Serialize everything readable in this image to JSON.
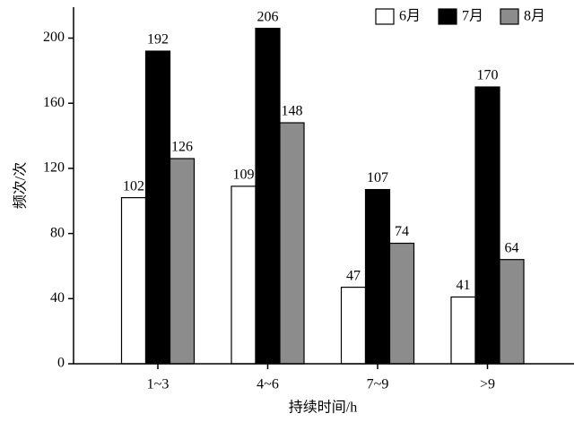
{
  "chart_data": {
    "type": "bar",
    "x_label": "持续时间/h",
    "y_label": "频次/次",
    "categories": [
      "1~3",
      "4~6",
      "7~9",
      ">9"
    ],
    "series": [
      {
        "name": "6月",
        "color": "#ffffff",
        "values": [
          102,
          109,
          47,
          41
        ]
      },
      {
        "name": "7月",
        "color": "#000000",
        "values": [
          192,
          206,
          107,
          170
        ]
      },
      {
        "name": "8月",
        "color": "#8c8c8c",
        "values": [
          126,
          148,
          74,
          64
        ]
      }
    ],
    "ylim": [
      0,
      219
    ],
    "yticks": [
      0,
      40,
      80,
      120,
      160,
      200
    ],
    "legend": "top-right",
    "data_labels": true
  }
}
